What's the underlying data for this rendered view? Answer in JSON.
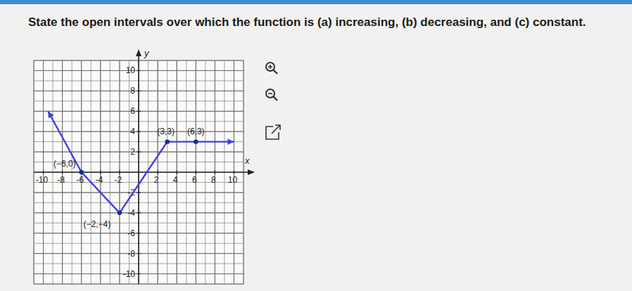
{
  "question": "State the open intervals over which the function is (a) increasing, (b) decreasing, and (c) constant.",
  "chart_data": {
    "type": "line",
    "x_label": "x",
    "y_label": "y",
    "x": [
      -9.5,
      -6,
      -2,
      3,
      6,
      10
    ],
    "series": [
      {
        "color": "#4040dc",
        "values": [
          6,
          0,
          -4,
          3,
          3,
          3
        ]
      }
    ],
    "xlim": [
      -11,
      11
    ],
    "ylim": [
      -11,
      11
    ],
    "xticks": [
      -10,
      -8,
      -6,
      -4,
      -2,
      2,
      4,
      6,
      8,
      10
    ],
    "yticks": [
      -10,
      -8,
      -6,
      -4,
      -2,
      2,
      4,
      6,
      8,
      10
    ],
    "grid": true,
    "annotations": [
      {
        "text": "(−6,0)",
        "x": -6,
        "y": 0
      },
      {
        "text": "(−2,−4)",
        "x": -2,
        "y": -4
      },
      {
        "text": "(3,3)",
        "x": 3,
        "y": 3
      },
      {
        "text": "(6,3)",
        "x": 6,
        "y": 3
      }
    ]
  }
}
